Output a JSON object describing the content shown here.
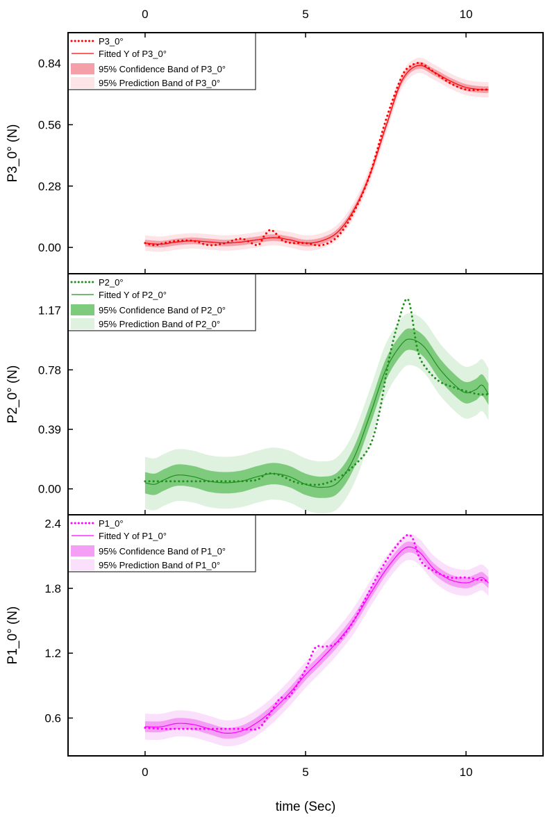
{
  "chart_data": {
    "type": "line",
    "xlabel": "time (Sec)",
    "xlim": [
      -2.4,
      12.4
    ],
    "x_ticks": [
      0,
      5,
      10
    ],
    "x_tick_labels": [
      "0",
      "5",
      "10"
    ],
    "panels": [
      {
        "id": "p3",
        "ylabel": "P3_0° (N)",
        "ylim": [
          -0.12,
          0.98
        ],
        "y_ticks": [
          0.0,
          0.28,
          0.56,
          0.84
        ],
        "y_tick_labels": [
          "0.00",
          "0.28",
          "0.56",
          "0.84"
        ],
        "color": "#ff0000",
        "conf_color": "#f5a0a8",
        "pred_color": "#fde4e6",
        "conf_half_width": 0.015,
        "pred_half_width": 0.035,
        "series": [
          {
            "name": "P3_0°",
            "style": "dotted",
            "x": [
              0,
              0.3,
              0.6,
              1.0,
              1.5,
              2.0,
              2.5,
              3.0,
              3.5,
              3.7,
              3.9,
              4.1,
              4.3,
              4.6,
              5.0,
              5.5,
              6.0,
              6.5,
              7.0,
              7.5,
              8.0,
              8.3,
              8.6,
              9.0,
              9.5,
              10.0,
              10.5,
              10.7
            ],
            "y": [
              0.02,
              0.01,
              0.02,
              0.03,
              0.03,
              0.01,
              0.02,
              0.04,
              0.01,
              0.05,
              0.08,
              0.06,
              0.03,
              0.02,
              0.02,
              0.01,
              0.05,
              0.16,
              0.33,
              0.58,
              0.78,
              0.83,
              0.84,
              0.8,
              0.75,
              0.72,
              0.72,
              0.72
            ]
          },
          {
            "name": "Fitted Y of P3_0°",
            "style": "solid",
            "x": [
              0,
              0.5,
              1.0,
              1.5,
              2.0,
              2.5,
              3.0,
              3.5,
              4.0,
              4.5,
              5.0,
              5.5,
              6.0,
              6.5,
              7.0,
              7.5,
              8.0,
              8.5,
              9.0,
              9.5,
              10.0,
              10.5,
              10.7
            ],
            "y": [
              0.02,
              0.015,
              0.025,
              0.03,
              0.025,
              0.02,
              0.025,
              0.035,
              0.045,
              0.035,
              0.02,
              0.03,
              0.07,
              0.17,
              0.33,
              0.55,
              0.76,
              0.83,
              0.8,
              0.76,
              0.73,
              0.72,
              0.72
            ]
          }
        ],
        "legend": [
          "P3_0°",
          "Fitted Y of P3_0°",
          "95% Confidence Band of P3_0°",
          "95% Prediction Band of P3_0°"
        ]
      },
      {
        "id": "p2",
        "ylabel": "P2_0° (N)",
        "ylim": [
          -0.17,
          1.41
        ],
        "y_ticks": [
          0.0,
          0.39,
          0.78,
          1.17
        ],
        "y_tick_labels": [
          "0.00",
          "0.39",
          "0.78",
          "1.17"
        ],
        "color": "#1f8f1f",
        "conf_color": "#7ecb7e",
        "pred_color": "#dff1df",
        "conf_half_width": 0.07,
        "pred_half_width": 0.17,
        "series": [
          {
            "name": "P2_0°",
            "style": "dotted",
            "x": [
              0,
              0.5,
              1.0,
              1.5,
              2.0,
              2.5,
              3.0,
              3.5,
              3.8,
              4.2,
              4.6,
              5.0,
              5.5,
              6.0,
              6.5,
              7.0,
              7.3,
              7.6,
              7.9,
              8.2,
              8.5,
              8.8,
              9.2,
              9.7,
              10.0,
              10.4,
              10.7
            ],
            "y": [
              0.05,
              0.05,
              0.05,
              0.05,
              0.05,
              0.05,
              0.05,
              0.06,
              0.1,
              0.09,
              0.05,
              0.03,
              0.03,
              0.07,
              0.15,
              0.28,
              0.5,
              0.85,
              1.1,
              1.24,
              0.9,
              0.78,
              0.7,
              0.66,
              0.64,
              0.62,
              0.62
            ]
          },
          {
            "name": "Fitted Y of P2_0°",
            "style": "solid",
            "x": [
              0,
              0.3,
              0.6,
              1.0,
              1.5,
              2.0,
              2.5,
              3.0,
              3.5,
              4.0,
              4.5,
              5.0,
              5.5,
              6.0,
              6.5,
              7.0,
              7.5,
              8.0,
              8.3,
              8.7,
              9.2,
              9.7,
              10.0,
              10.3,
              10.5,
              10.7
            ],
            "y": [
              0.04,
              0.03,
              0.06,
              0.09,
              0.08,
              0.05,
              0.04,
              0.05,
              0.08,
              0.1,
              0.08,
              0.03,
              0.01,
              0.04,
              0.2,
              0.48,
              0.78,
              0.95,
              0.98,
              0.93,
              0.78,
              0.67,
              0.63,
              0.65,
              0.68,
              0.62
            ]
          }
        ],
        "legend": [
          "P2_0°",
          "Fitted Y of P2_0°",
          "95% Confidence Band of P2_0°",
          "95% Prediction Band of P2_0°"
        ]
      },
      {
        "id": "p1",
        "ylabel": "P1_0° (N)",
        "ylim": [
          0.25,
          2.48
        ],
        "y_ticks": [
          0.6,
          1.2,
          1.8,
          2.4
        ],
        "y_tick_labels": [
          "0.6",
          "1.2",
          "1.8",
          "2.4"
        ],
        "color": "#ff00ff",
        "conf_color": "#f59ef5",
        "pred_color": "#fbe0fb",
        "conf_half_width": 0.05,
        "pred_half_width": 0.12,
        "series": [
          {
            "name": "P1_0°",
            "style": "dotted",
            "x": [
              0,
              0.5,
              1.0,
              1.5,
              2.0,
              2.5,
              3.0,
              3.5,
              3.8,
              4.2,
              4.5,
              5.0,
              5.3,
              5.6,
              6.0,
              6.5,
              7.0,
              7.5,
              8.0,
              8.3,
              8.6,
              9.0,
              9.5,
              10.0,
              10.4,
              10.7
            ],
            "y": [
              0.51,
              0.5,
              0.5,
              0.5,
              0.5,
              0.5,
              0.5,
              0.5,
              0.6,
              0.78,
              0.8,
              1.05,
              1.25,
              1.26,
              1.3,
              1.5,
              1.78,
              2.05,
              2.25,
              2.28,
              2.05,
              1.96,
              1.9,
              1.9,
              1.88,
              1.87
            ]
          },
          {
            "name": "Fitted Y of P1_0°",
            "style": "solid",
            "x": [
              0,
              0.5,
              1.0,
              1.5,
              2.0,
              2.5,
              3.0,
              3.5,
              4.0,
              4.5,
              5.0,
              5.5,
              6.0,
              6.5,
              7.0,
              7.5,
              8.0,
              8.3,
              8.6,
              9.0,
              9.5,
              10.0,
              10.3,
              10.5,
              10.7
            ],
            "y": [
              0.52,
              0.52,
              0.55,
              0.54,
              0.5,
              0.46,
              0.48,
              0.56,
              0.68,
              0.83,
              1.0,
              1.15,
              1.31,
              1.5,
              1.74,
              1.97,
              2.15,
              2.18,
              2.12,
              1.98,
              1.88,
              1.85,
              1.88,
              1.9,
              1.85
            ]
          }
        ],
        "legend": [
          "P1_0°",
          "Fitted Y of P1_0°",
          "95% Confidence Band of P1_0°",
          "95% Prediction Band of P1_0°"
        ]
      }
    ]
  }
}
